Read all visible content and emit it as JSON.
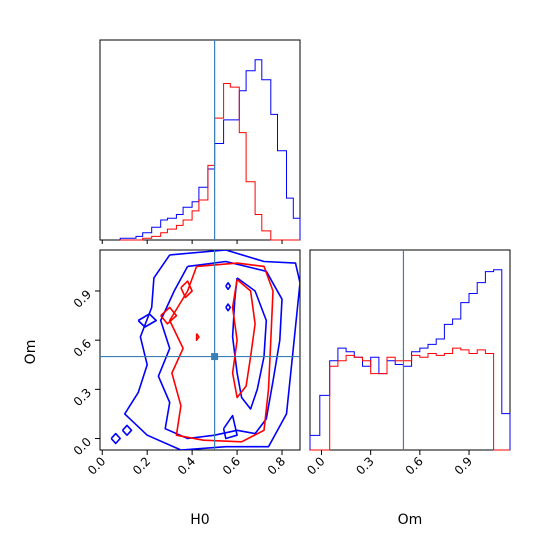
{
  "chart_data": {
    "type": "corner",
    "parameters": [
      "H0",
      "Om"
    ],
    "truths": {
      "H0": 0.5,
      "Om": 0.5
    },
    "colors": {
      "sample_a": "#0000ff",
      "sample_b": "#ff0000",
      "truth": "#3b7fb7"
    },
    "axes": {
      "H0": {
        "label": "H0",
        "lim": [
          -0.01,
          0.88
        ],
        "ticks": [
          0.0,
          0.2,
          0.4,
          0.6,
          0.8
        ],
        "tick_labels": [
          "0.0",
          "0.2",
          "0.4",
          "0.6",
          "0.8"
        ]
      },
      "Om": {
        "label": "Om",
        "lim": [
          -0.07,
          1.15
        ],
        "ticks": [
          0.0,
          0.3,
          0.6,
          0.9
        ],
        "tick_labels": [
          "0.0",
          "0.3",
          "0.6",
          "0.9"
        ]
      }
    },
    "hist_H0": {
      "edges": [
        0.08,
        0.15,
        0.18,
        0.22,
        0.26,
        0.29,
        0.33,
        0.36,
        0.4,
        0.43,
        0.47,
        0.5,
        0.54,
        0.57,
        0.61,
        0.64,
        0.68,
        0.71,
        0.75,
        0.78,
        0.82,
        0.85,
        0.88
      ],
      "blue": [
        0.01,
        0.02,
        0.04,
        0.07,
        0.11,
        0.12,
        0.14,
        0.18,
        0.21,
        0.29,
        0.39,
        0.53,
        0.66,
        0.66,
        0.82,
        0.93,
        0.99,
        0.88,
        0.69,
        0.49,
        0.23,
        0.12
      ],
      "red": [
        0,
        0,
        0.01,
        0.02,
        0.04,
        0.06,
        0.08,
        0.11,
        0.16,
        0.22,
        0.41,
        0.67,
        0.86,
        0.84,
        0.59,
        0.32,
        0.14,
        0.05,
        0,
        0,
        0,
        0
      ]
    },
    "hist_Om": {
      "edges": [
        -0.07,
        -0.01,
        0.0,
        0.05,
        0.1,
        0.15,
        0.2,
        0.25,
        0.3,
        0.35,
        0.4,
        0.45,
        0.5,
        0.55,
        0.6,
        0.65,
        0.7,
        0.75,
        0.8,
        0.85,
        0.9,
        0.95,
        1.0,
        1.05,
        1.1,
        1.15
      ],
      "blue": [
        0.08,
        0.3,
        0.3,
        0.49,
        0.56,
        0.54,
        0.51,
        0.46,
        0.51,
        0.42,
        0.49,
        0.47,
        0.46,
        0.54,
        0.56,
        0.58,
        0.61,
        0.69,
        0.72,
        0.81,
        0.86,
        0.92,
        0.98,
        0.99,
        0.2
      ],
      "red": [
        0,
        0,
        0,
        0.46,
        0.49,
        0.52,
        0.51,
        0.49,
        0.42,
        0.42,
        0.51,
        0.49,
        0.49,
        0.52,
        0.51,
        0.53,
        0.52,
        0.53,
        0.56,
        0.55,
        0.53,
        0.55,
        0.53,
        0,
        0
      ]
    },
    "contours": [
      {
        "color": "blue",
        "points": [
          [
            0.3,
            1.12
          ],
          [
            0.55,
            1.15
          ],
          [
            0.72,
            1.08
          ],
          [
            0.86,
            1.07
          ],
          [
            0.88,
            0.95
          ],
          [
            0.85,
            0.55
          ],
          [
            0.82,
            0.15
          ],
          [
            0.74,
            -0.05
          ],
          [
            0.55,
            -0.05
          ],
          [
            0.35,
            -0.07
          ],
          [
            0.2,
            0.02
          ],
          [
            0.1,
            0.15
          ],
          [
            0.16,
            0.28
          ],
          [
            0.2,
            0.45
          ],
          [
            0.17,
            0.62
          ],
          [
            0.22,
            0.8
          ],
          [
            0.23,
            0.98
          ],
          [
            0.3,
            1.12
          ]
        ]
      },
      {
        "color": "blue",
        "points": [
          [
            0.38,
            1.05
          ],
          [
            0.55,
            1.08
          ],
          [
            0.73,
            1.02
          ],
          [
            0.8,
            0.85
          ],
          [
            0.79,
            0.6
          ],
          [
            0.76,
            0.35
          ],
          [
            0.73,
            0.12
          ],
          [
            0.68,
            0.03
          ],
          [
            0.6,
            0.05
          ],
          [
            0.5,
            0.02
          ],
          [
            0.38,
            0.0
          ],
          [
            0.28,
            0.06
          ],
          [
            0.3,
            0.22
          ],
          [
            0.25,
            0.38
          ],
          [
            0.3,
            0.55
          ],
          [
            0.26,
            0.72
          ],
          [
            0.32,
            0.9
          ],
          [
            0.38,
            1.05
          ]
        ]
      },
      {
        "color": "blue",
        "points": [
          [
            0.6,
            0.98
          ],
          [
            0.68,
            0.9
          ],
          [
            0.73,
            0.72
          ],
          [
            0.72,
            0.5
          ],
          [
            0.69,
            0.3
          ],
          [
            0.66,
            0.18
          ],
          [
            0.62,
            0.25
          ],
          [
            0.6,
            0.4
          ],
          [
            0.58,
            0.62
          ],
          [
            0.59,
            0.85
          ],
          [
            0.6,
            0.98
          ]
        ]
      },
      {
        "color": "blue",
        "points": [
          [
            0.54,
            0.06
          ],
          [
            0.58,
            0.14
          ],
          [
            0.6,
            0.02
          ],
          [
            0.55,
            0.0
          ],
          [
            0.54,
            0.06
          ]
        ]
      },
      {
        "color": "blue",
        "points": [
          [
            0.16,
            0.72
          ],
          [
            0.21,
            0.76
          ],
          [
            0.24,
            0.72
          ],
          [
            0.19,
            0.68
          ],
          [
            0.16,
            0.72
          ]
        ]
      },
      {
        "color": "blue",
        "points": [
          [
            0.04,
            0.0
          ],
          [
            0.06,
            0.03
          ],
          [
            0.08,
            0.0
          ],
          [
            0.06,
            -0.03
          ],
          [
            0.04,
            0.0
          ]
        ]
      },
      {
        "color": "blue",
        "points": [
          [
            0.09,
            0.05
          ],
          [
            0.11,
            0.08
          ],
          [
            0.13,
            0.05
          ],
          [
            0.11,
            0.02
          ],
          [
            0.09,
            0.05
          ]
        ]
      },
      {
        "color": "blue",
        "points": [
          [
            0.55,
            0.93
          ],
          [
            0.56,
            0.95
          ],
          [
            0.57,
            0.93
          ],
          [
            0.56,
            0.91
          ],
          [
            0.55,
            0.93
          ]
        ]
      },
      {
        "color": "blue",
        "points": [
          [
            0.55,
            0.8
          ],
          [
            0.56,
            0.82
          ],
          [
            0.57,
            0.8
          ],
          [
            0.56,
            0.78
          ],
          [
            0.55,
            0.8
          ]
        ]
      },
      {
        "color": "red",
        "points": [
          [
            0.42,
            1.05
          ],
          [
            0.6,
            1.07
          ],
          [
            0.72,
            1.05
          ],
          [
            0.76,
            0.9
          ],
          [
            0.75,
            0.6
          ],
          [
            0.74,
            0.3
          ],
          [
            0.72,
            0.05
          ],
          [
            0.62,
            -0.02
          ],
          [
            0.45,
            -0.01
          ],
          [
            0.33,
            0.02
          ],
          [
            0.35,
            0.2
          ],
          [
            0.31,
            0.4
          ],
          [
            0.36,
            0.55
          ],
          [
            0.3,
            0.72
          ],
          [
            0.38,
            0.9
          ],
          [
            0.42,
            1.05
          ]
        ]
      },
      {
        "color": "red",
        "points": [
          [
            0.6,
            0.97
          ],
          [
            0.66,
            0.9
          ],
          [
            0.68,
            0.7
          ],
          [
            0.66,
            0.5
          ],
          [
            0.64,
            0.32
          ],
          [
            0.6,
            0.25
          ],
          [
            0.58,
            0.4
          ],
          [
            0.6,
            0.6
          ],
          [
            0.58,
            0.8
          ],
          [
            0.6,
            0.97
          ]
        ]
      },
      {
        "color": "red",
        "points": [
          [
            0.35,
            0.92
          ],
          [
            0.38,
            0.96
          ],
          [
            0.4,
            0.9
          ],
          [
            0.37,
            0.86
          ],
          [
            0.35,
            0.92
          ]
        ]
      },
      {
        "color": "red",
        "points": [
          [
            0.26,
            0.75
          ],
          [
            0.3,
            0.8
          ],
          [
            0.33,
            0.75
          ],
          [
            0.29,
            0.7
          ],
          [
            0.26,
            0.75
          ]
        ]
      },
      {
        "color": "red",
        "points": [
          [
            0.42,
            0.64
          ],
          [
            0.43,
            0.62
          ],
          [
            0.42,
            0.6
          ],
          [
            0.42,
            0.64
          ]
        ]
      }
    ]
  }
}
